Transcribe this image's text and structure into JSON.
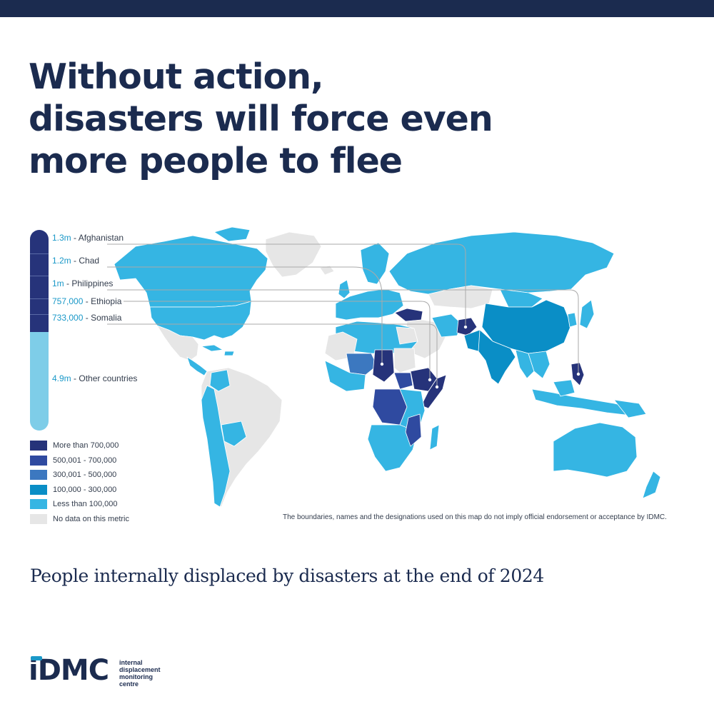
{
  "header": {
    "title_lines": [
      "Without action,",
      "disasters will force even",
      "more people to flee"
    ]
  },
  "map": {
    "subtitle": "People internally displaced by disasters at the end of 2024",
    "disclaimer": "The boundaries, names and the designations used on this map do not imply official endorsement or acceptance by IDMC.",
    "top_countries": [
      {
        "value": "1.3m",
        "country": "Afghanistan"
      },
      {
        "value": "1.2m",
        "country": "Chad"
      },
      {
        "value": "1m",
        "country": "Philippines"
      },
      {
        "value": "757,000",
        "country": "Ethiopia"
      },
      {
        "value": "733,000",
        "country": "Somalia"
      }
    ],
    "other": {
      "value": "4.9m",
      "country": "Other countries"
    },
    "legend": [
      {
        "label": "More than 700,000",
        "color": "#26337a"
      },
      {
        "label": "500,001 - 700,000",
        "color": "#2f4aa0"
      },
      {
        "label": "300,001 - 500,000",
        "color": "#3c78c0"
      },
      {
        "label": "100,000 - 300,000",
        "color": "#0a8ec6"
      },
      {
        "label": "Less than 100,000",
        "color": "#35b5e3"
      },
      {
        "label": "No data on this metric",
        "color": "#e6e6e6"
      }
    ]
  },
  "logo": {
    "wordmark": "iDMC",
    "tagline": [
      "internal",
      "displacement",
      "monitoring",
      "centre"
    ]
  }
}
